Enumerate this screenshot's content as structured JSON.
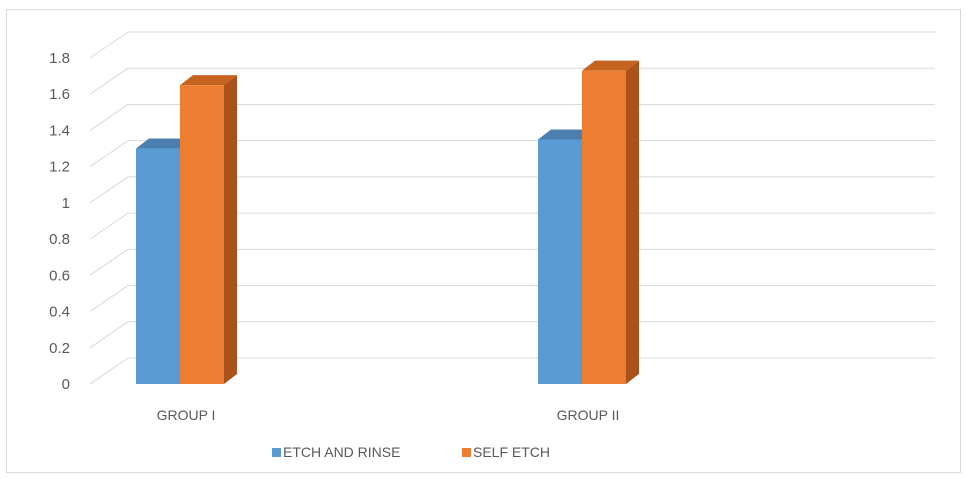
{
  "chart_data": {
    "type": "bar",
    "categories": [
      "GROUP I",
      "GROUP II"
    ],
    "series": [
      {
        "name": "ETCH AND RINSE",
        "values": [
          1.3,
          1.35
        ],
        "color": "#5B9BD5",
        "top_color": "#4A7FB0",
        "side_color": "#3E6E9A"
      },
      {
        "name": "SELF ETCH",
        "values": [
          1.65,
          1.73
        ],
        "color": "#ED7D31",
        "top_color": "#C5621F",
        "side_color": "#A9531A"
      }
    ],
    "yticks": [
      "0",
      "0.2",
      "0.4",
      "0.6",
      "0.8",
      "1",
      "1.2",
      "1.4",
      "1.6",
      "1.8"
    ],
    "ylim": [
      0,
      1.8
    ],
    "grid": true,
    "legend_position": "bottom",
    "three_d": true
  }
}
